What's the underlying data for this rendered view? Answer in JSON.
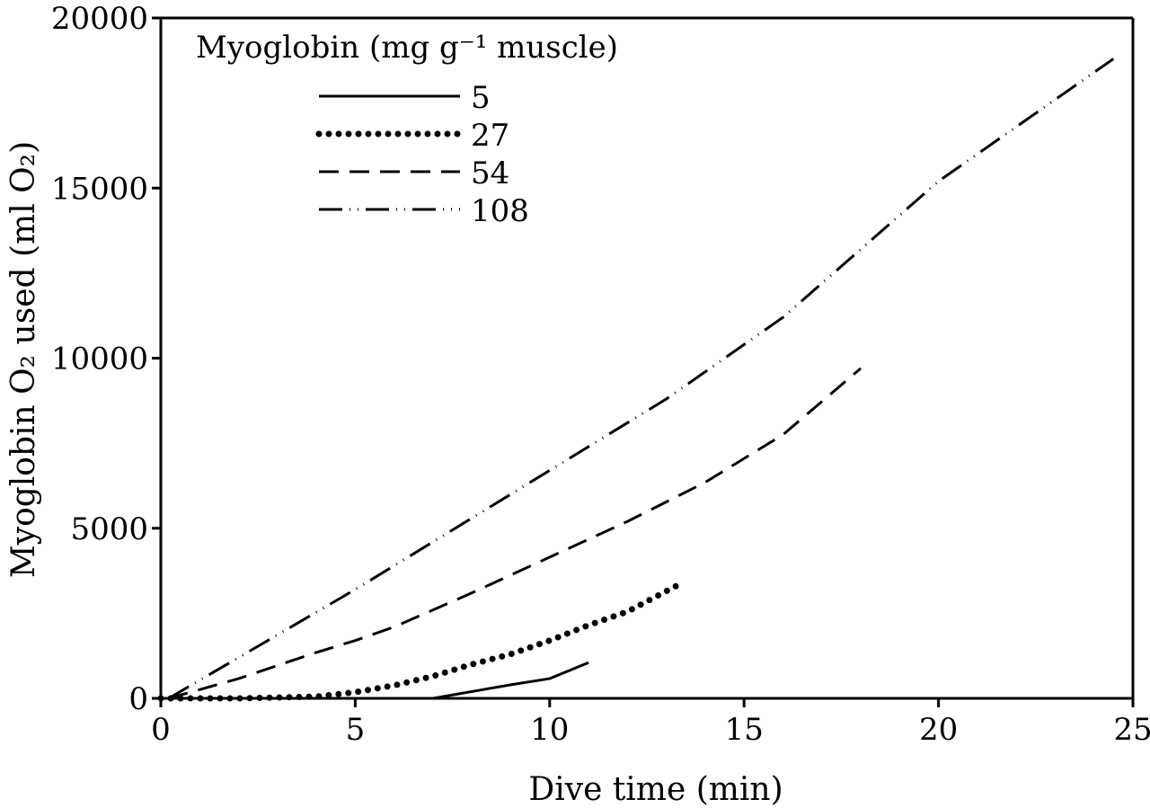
{
  "chart_data": {
    "type": "line",
    "title": "",
    "xlabel": "Dive time (min)",
    "ylabel": "Myoglobin O₂ used (ml O₂)",
    "xlim": [
      0,
      25
    ],
    "ylim": [
      0,
      20000
    ],
    "xticks": [
      "0",
      "5",
      "10",
      "15",
      "20",
      "25"
    ],
    "yticks": [
      "0",
      "5000",
      "10000",
      "15000",
      "20000"
    ],
    "grid": false,
    "legend": {
      "title": "Myoglobin (mg g⁻¹ muscle)",
      "placement": "top-left"
    },
    "series": [
      {
        "name": "5",
        "style": "solid",
        "x": [
          7.0,
          8,
          9,
          10,
          11.0
        ],
        "y": [
          0,
          200,
          400,
          580,
          1050
        ]
      },
      {
        "name": "27",
        "style": "dotted",
        "x": [
          0,
          2,
          4,
          5,
          6,
          7,
          8,
          9,
          10,
          11,
          12,
          13.3
        ],
        "y": [
          0,
          0,
          50,
          180,
          380,
          650,
          1000,
          1300,
          1700,
          2150,
          2550,
          3330
        ]
      },
      {
        "name": "54",
        "style": "dashed",
        "x": [
          0.2,
          2,
          4,
          5,
          6,
          8,
          10,
          12,
          14,
          15,
          16,
          18.0
        ],
        "y": [
          0,
          580,
          1350,
          1700,
          2100,
          3100,
          4150,
          5200,
          6350,
          7050,
          7750,
          9700
        ]
      },
      {
        "name": "108",
        "style": "dash-dot-dot",
        "x": [
          0.2,
          2,
          5,
          8,
          10,
          13,
          16,
          20,
          24.5
        ],
        "y": [
          0,
          1200,
          3200,
          5300,
          6700,
          8800,
          11200,
          15200,
          18800
        ]
      }
    ]
  }
}
